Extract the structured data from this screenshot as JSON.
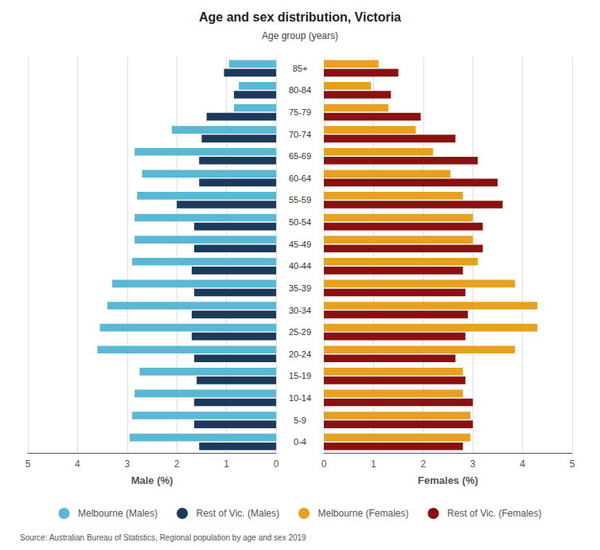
{
  "chart_data": [
    {
      "type": "bar",
      "orientation": "horizontal",
      "title": "Age and sex distribution, Victoria",
      "subtitle": "Age group (years)",
      "source": "Source: Australian Bureau of Statistics, Regional population by age and sex 2019",
      "legend": "bottom",
      "categories": [
        "0-4",
        "5-9",
        "10-14",
        "15-19",
        "20-24",
        "25-29",
        "30-34",
        "35-39",
        "40-44",
        "45-49",
        "50-54",
        "55-59",
        "60-64",
        "65-69",
        "70-74",
        "75-79",
        "80-84",
        "85+"
      ],
      "xlabel": "Male (%)",
      "xlim": [
        5.0,
        0
      ],
      "xticks": [
        0,
        1,
        2,
        3,
        4,
        5
      ],
      "grid": true,
      "series": [
        {
          "name": "Melbourne (Males)",
          "color": "#5BB8D4",
          "values": [
            2.95,
            2.9,
            2.85,
            2.75,
            3.6,
            3.55,
            3.4,
            3.3,
            2.9,
            2.85,
            2.85,
            2.8,
            2.7,
            2.85,
            2.1,
            0.85,
            0.75,
            0.95
          ]
        },
        {
          "name": "Rest of Vic. (Males)",
          "color": "#1B3A5C",
          "values": [
            1.55,
            1.65,
            1.65,
            1.6,
            1.65,
            1.7,
            1.7,
            1.65,
            1.7,
            1.65,
            1.65,
            2.0,
            1.55,
            1.55,
            1.5,
            1.4,
            0.85,
            1.05
          ]
        }
      ]
    },
    {
      "type": "bar",
      "orientation": "horizontal",
      "xlabel": "Females (%)",
      "xlim": [
        0,
        5.0
      ],
      "xticks": [
        0,
        1,
        2,
        3,
        4,
        5
      ],
      "grid": true,
      "series": [
        {
          "name": "Melbourne (Females)",
          "color": "#E8A020",
          "values": [
            2.95,
            2.95,
            2.8,
            2.8,
            3.85,
            4.3,
            4.3,
            3.85,
            3.1,
            3.0,
            3.0,
            2.8,
            2.55,
            2.2,
            1.85,
            1.3,
            0.95,
            1.1
          ]
        },
        {
          "name": "Rest of Vic. (Females)",
          "color": "#8B1010",
          "values": [
            2.8,
            3.0,
            3.0,
            2.85,
            2.65,
            2.85,
            2.9,
            2.85,
            2.8,
            3.2,
            3.2,
            3.6,
            3.5,
            3.1,
            2.65,
            1.95,
            1.35,
            1.5
          ]
        }
      ]
    }
  ]
}
